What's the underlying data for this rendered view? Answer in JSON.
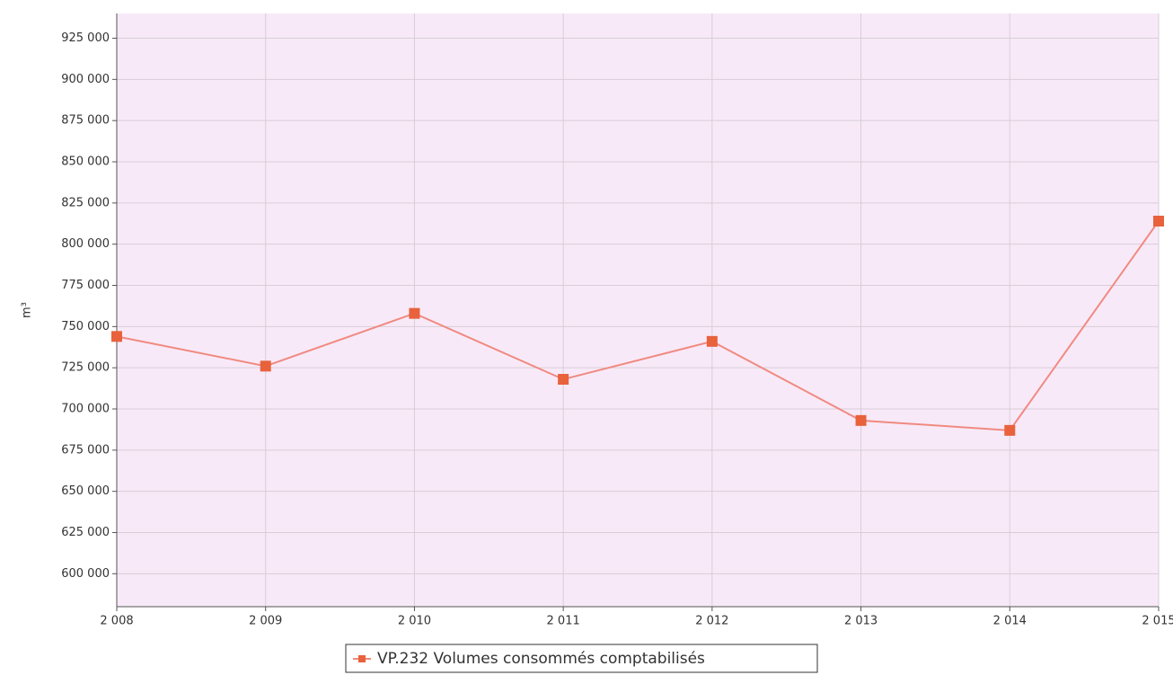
{
  "chart_data": {
    "type": "line",
    "y_label": "m³",
    "categories": [
      "2 008",
      "2 009",
      "2 010",
      "2 011",
      "2 012",
      "2 013",
      "2 014",
      "2 015"
    ],
    "series": [
      {
        "name": "VP.232 Volumes consommés comptabilisés",
        "color": "#f08a80",
        "marker_color": "#e8623c",
        "values": [
          744000,
          726000,
          758000,
          718000,
          741000,
          693000,
          687000,
          814000
        ]
      }
    ],
    "ylim": [
      580000,
      940000
    ],
    "yticks": [
      {
        "value": 600000,
        "label": "600 000"
      },
      {
        "value": 625000,
        "label": "625 000"
      },
      {
        "value": 650000,
        "label": "650 000"
      },
      {
        "value": 675000,
        "label": "675 000"
      },
      {
        "value": 700000,
        "label": "700 000"
      },
      {
        "value": 725000,
        "label": "725 000"
      },
      {
        "value": 750000,
        "label": "750 000"
      },
      {
        "value": 775000,
        "label": "775 000"
      },
      {
        "value": 800000,
        "label": "800 000"
      },
      {
        "value": 825000,
        "label": "825 000"
      },
      {
        "value": 850000,
        "label": "850 000"
      },
      {
        "value": 875000,
        "label": "875 000"
      },
      {
        "value": 900000,
        "label": "900 000"
      },
      {
        "value": 925000,
        "label": "925 000"
      }
    ],
    "grid": true
  }
}
